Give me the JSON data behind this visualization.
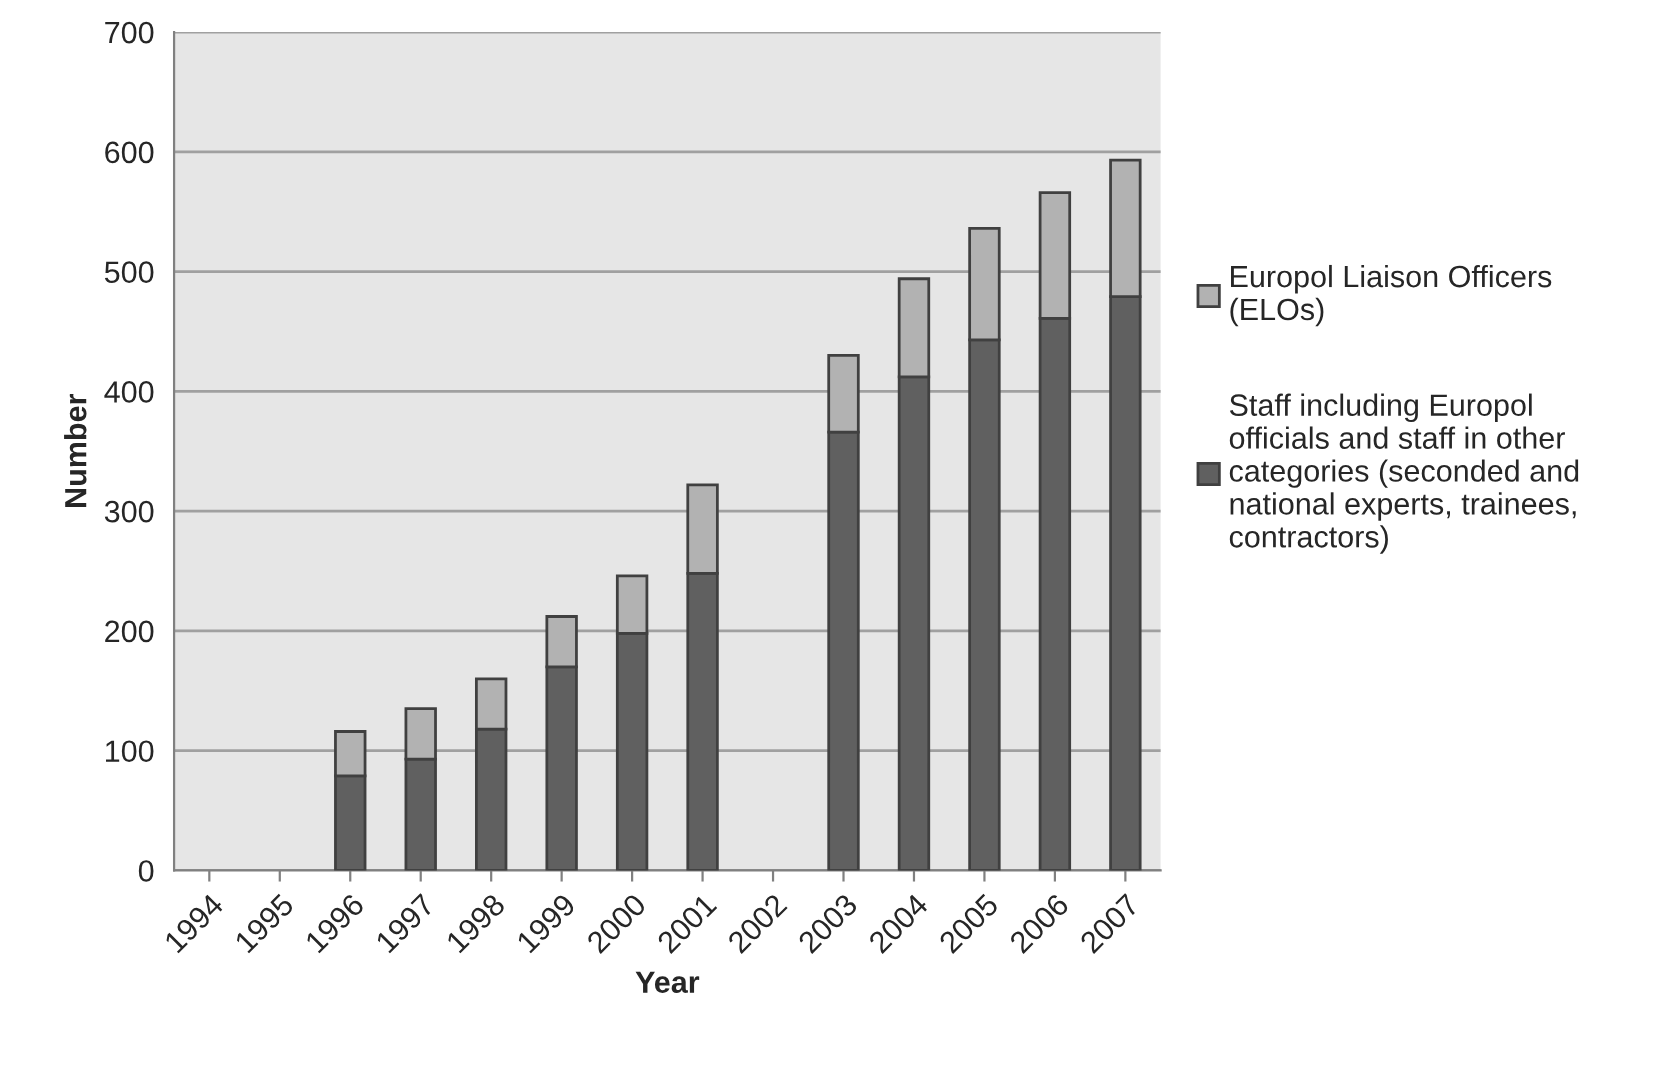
{
  "chart_data": {
    "type": "bar",
    "stacked": true,
    "xlabel": "Year",
    "ylabel": "Number",
    "categories": [
      "1994",
      "1995",
      "1996",
      "1997",
      "1998",
      "1999",
      "2000",
      "2001",
      "2002",
      "2003",
      "2004",
      "2005",
      "2006",
      "2007"
    ],
    "series": [
      {
        "name": "Staff including Europol officials and staff in other categories (seconded and national experts, trainees, contractors)",
        "color": "#606060",
        "values": [
          null,
          null,
          79,
          93,
          118,
          170,
          198,
          248,
          null,
          366,
          412,
          443,
          461,
          479
        ]
      },
      {
        "name": "Europol Liaison Officers (ELOs)",
        "color": "#b2b2b2",
        "values": [
          null,
          null,
          37,
          42,
          42,
          42,
          48,
          74,
          null,
          64,
          82,
          93,
          105,
          114
        ]
      }
    ],
    "ylim": [
      0,
      700
    ],
    "yticks": [
      0,
      100,
      200,
      300,
      400,
      500,
      600,
      700
    ],
    "grid": "y",
    "legend": "right"
  }
}
